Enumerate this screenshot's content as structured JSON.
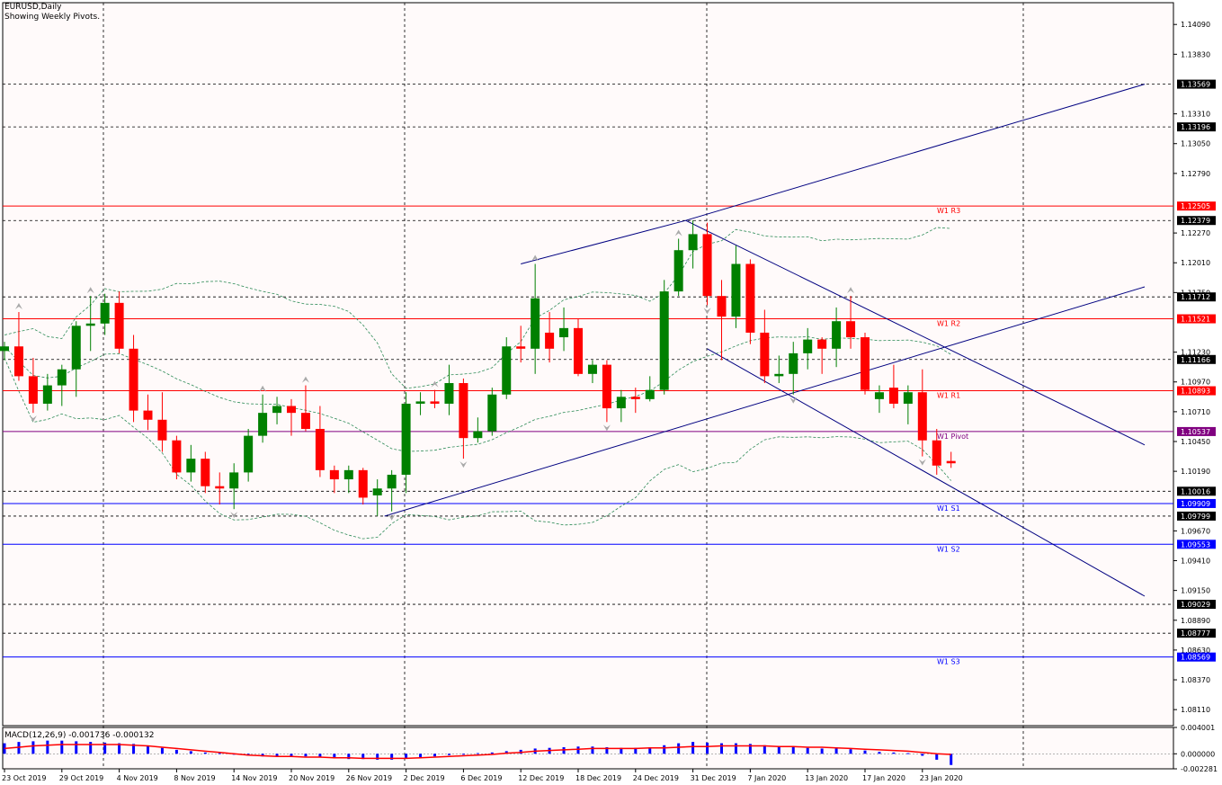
{
  "title": "EURUSD,Daily",
  "subtitle": "Showing Weekly Pivots.",
  "macd_label": "MACD(12,26,9) -0.001736 -0.000132",
  "colors": {
    "background": "#fffafa",
    "bull": "#008000",
    "bear": "#ff0000",
    "pivot": "#800080",
    "resistance": "#ff0000",
    "support": "#0000ff",
    "channel": "#000080",
    "envelope": "#2e8b57",
    "macd_hist": "#0000ff",
    "macd_signal": "#ff0000"
  },
  "chart_data": {
    "type": "candlestick",
    "symbol": "EURUSD",
    "timeframe": "Daily",
    "ylim": [
      1.0797,
      1.1428
    ],
    "y_ticks": [
      "1.14090",
      "1.13830",
      "1.13310",
      "1.13050",
      "1.12790",
      "1.12270",
      "1.12010",
      "1.11750",
      "1.11230",
      "1.10970",
      "1.10710",
      "1.10450",
      "1.10190",
      "1.09670",
      "1.09410",
      "1.09150",
      "1.08890",
      "1.08630",
      "1.08370",
      "1.08110"
    ],
    "x_labels": [
      {
        "i": 0,
        "label": "23 Oct 2019"
      },
      {
        "i": 4,
        "label": "29 Oct 2019"
      },
      {
        "i": 8,
        "label": "4 Nov 2019"
      },
      {
        "i": 12,
        "label": "8 Nov 2019"
      },
      {
        "i": 16,
        "label": "14 Nov 2019"
      },
      {
        "i": 20,
        "label": "20 Nov 2019"
      },
      {
        "i": 24,
        "label": "26 Nov 2019"
      },
      {
        "i": 28,
        "label": "2 Dec 2019"
      },
      {
        "i": 32,
        "label": "6 Dec 2019"
      },
      {
        "i": 36,
        "label": "12 Dec 2019"
      },
      {
        "i": 40,
        "label": "18 Dec 2019"
      },
      {
        "i": 44,
        "label": "24 Dec 2019"
      },
      {
        "i": 48,
        "label": "31 Dec 2019"
      },
      {
        "i": 52,
        "label": "7 Jan 2020"
      },
      {
        "i": 56,
        "label": "13 Jan 2020"
      },
      {
        "i": 60,
        "label": "17 Jan 2020"
      },
      {
        "i": 64,
        "label": "23 Jan 2020"
      }
    ],
    "candles": [
      {
        "o": 1.1124,
        "h": 1.1132,
        "l": 1.1116,
        "c": 1.1128
      },
      {
        "o": 1.1128,
        "h": 1.1158,
        "l": 1.1098,
        "c": 1.1102
      },
      {
        "o": 1.1102,
        "h": 1.1118,
        "l": 1.107,
        "c": 1.1078
      },
      {
        "o": 1.1078,
        "h": 1.1104,
        "l": 1.1072,
        "c": 1.1094
      },
      {
        "o": 1.1094,
        "h": 1.1112,
        "l": 1.1076,
        "c": 1.1108
      },
      {
        "o": 1.1108,
        "h": 1.115,
        "l": 1.1084,
        "c": 1.1146
      },
      {
        "o": 1.1146,
        "h": 1.1172,
        "l": 1.1124,
        "c": 1.1148
      },
      {
        "o": 1.1148,
        "h": 1.1174,
        "l": 1.1138,
        "c": 1.1166
      },
      {
        "o": 1.1166,
        "h": 1.1176,
        "l": 1.1122,
        "c": 1.1126
      },
      {
        "o": 1.1126,
        "h": 1.1138,
        "l": 1.1062,
        "c": 1.1072
      },
      {
        "o": 1.1072,
        "h": 1.1086,
        "l": 1.1055,
        "c": 1.1064
      },
      {
        "o": 1.1064,
        "h": 1.1088,
        "l": 1.1036,
        "c": 1.1046
      },
      {
        "o": 1.1046,
        "h": 1.105,
        "l": 1.1012,
        "c": 1.1018
      },
      {
        "o": 1.1018,
        "h": 1.1042,
        "l": 1.101,
        "c": 1.103
      },
      {
        "o": 1.103,
        "h": 1.1036,
        "l": 1.1,
        "c": 1.1006
      },
      {
        "o": 1.1006,
        "h": 1.1018,
        "l": 1.099,
        "c": 1.1004
      },
      {
        "o": 1.1004,
        "h": 1.1026,
        "l": 1.0986,
        "c": 1.1018
      },
      {
        "o": 1.1018,
        "h": 1.1056,
        "l": 1.101,
        "c": 1.105
      },
      {
        "o": 1.105,
        "h": 1.1086,
        "l": 1.1044,
        "c": 1.107
      },
      {
        "o": 1.107,
        "h": 1.1084,
        "l": 1.106,
        "c": 1.1076
      },
      {
        "o": 1.1076,
        "h": 1.1082,
        "l": 1.105,
        "c": 1.107
      },
      {
        "o": 1.107,
        "h": 1.1094,
        "l": 1.1054,
        "c": 1.1056
      },
      {
        "o": 1.1056,
        "h": 1.1076,
        "l": 1.1014,
        "c": 1.102
      },
      {
        "o": 1.102,
        "h": 1.1024,
        "l": 1.1,
        "c": 1.1012
      },
      {
        "o": 1.1012,
        "h": 1.1024,
        "l": 1.1,
        "c": 1.102
      },
      {
        "o": 1.102,
        "h": 1.1022,
        "l": 1.099,
        "c": 1.0996
      },
      {
        "o": 1.0998,
        "h": 1.1012,
        "l": 1.098,
        "c": 1.1004
      },
      {
        "o": 1.1004,
        "h": 1.102,
        "l": 1.0984,
        "c": 1.1016
      },
      {
        "o": 1.1016,
        "h": 1.1088,
        "l": 1.1,
        "c": 1.1078
      },
      {
        "o": 1.1078,
        "h": 1.1088,
        "l": 1.1068,
        "c": 1.108
      },
      {
        "o": 1.108,
        "h": 1.109,
        "l": 1.1074,
        "c": 1.1078
      },
      {
        "o": 1.1078,
        "h": 1.1112,
        "l": 1.1068,
        "c": 1.1096
      },
      {
        "o": 1.1096,
        "h": 1.11,
        "l": 1.103,
        "c": 1.1048
      },
      {
        "o": 1.1048,
        "h": 1.1066,
        "l": 1.1044,
        "c": 1.1054
      },
      {
        "o": 1.1054,
        "h": 1.1092,
        "l": 1.105,
        "c": 1.1086
      },
      {
        "o": 1.1086,
        "h": 1.1136,
        "l": 1.1082,
        "c": 1.1128
      },
      {
        "o": 1.1128,
        "h": 1.1146,
        "l": 1.1114,
        "c": 1.1126
      },
      {
        "o": 1.1126,
        "h": 1.12,
        "l": 1.1104,
        "c": 1.117
      },
      {
        "o": 1.114,
        "h": 1.1158,
        "l": 1.1114,
        "c": 1.1126
      },
      {
        "o": 1.1136,
        "h": 1.1162,
        "l": 1.1124,
        "c": 1.1144
      },
      {
        "o": 1.1144,
        "h": 1.1152,
        "l": 1.1102,
        "c": 1.1104
      },
      {
        "o": 1.1104,
        "h": 1.1116,
        "l": 1.1096,
        "c": 1.1112
      },
      {
        "o": 1.1112,
        "h": 1.1116,
        "l": 1.1062,
        "c": 1.1074
      },
      {
        "o": 1.1074,
        "h": 1.109,
        "l": 1.1062,
        "c": 1.1084
      },
      {
        "o": 1.1084,
        "h": 1.1092,
        "l": 1.107,
        "c": 1.1082
      },
      {
        "o": 1.1082,
        "h": 1.1102,
        "l": 1.108,
        "c": 1.109
      },
      {
        "o": 1.109,
        "h": 1.1186,
        "l": 1.1086,
        "c": 1.1176
      },
      {
        "o": 1.1176,
        "h": 1.1222,
        "l": 1.1172,
        "c": 1.1212
      },
      {
        "o": 1.1212,
        "h": 1.1238,
        "l": 1.1196,
        "c": 1.1226
      },
      {
        "o": 1.1226,
        "h": 1.1236,
        "l": 1.1164,
        "c": 1.1172
      },
      {
        "o": 1.1172,
        "h": 1.1186,
        "l": 1.1116,
        "c": 1.1154
      },
      {
        "o": 1.1154,
        "h": 1.1216,
        "l": 1.1144,
        "c": 1.12
      },
      {
        "o": 1.12,
        "h": 1.1204,
        "l": 1.113,
        "c": 1.114
      },
      {
        "o": 1.114,
        "h": 1.116,
        "l": 1.1096,
        "c": 1.1102
      },
      {
        "o": 1.1102,
        "h": 1.112,
        "l": 1.1096,
        "c": 1.1104
      },
      {
        "o": 1.1104,
        "h": 1.1132,
        "l": 1.1086,
        "c": 1.1122
      },
      {
        "o": 1.1122,
        "h": 1.1144,
        "l": 1.1108,
        "c": 1.1134
      },
      {
        "o": 1.1134,
        "h": 1.1136,
        "l": 1.1104,
        "c": 1.1126
      },
      {
        "o": 1.1126,
        "h": 1.1162,
        "l": 1.111,
        "c": 1.115
      },
      {
        "o": 1.115,
        "h": 1.1172,
        "l": 1.1126,
        "c": 1.1136
      },
      {
        "o": 1.1136,
        "h": 1.114,
        "l": 1.1086,
        "c": 1.109
      },
      {
        "o": 1.1082,
        "h": 1.1094,
        "l": 1.107,
        "c": 1.1088
      },
      {
        "o": 1.1092,
        "h": 1.1112,
        "l": 1.1074,
        "c": 1.1078
      },
      {
        "o": 1.1078,
        "h": 1.1094,
        "l": 1.106,
        "c": 1.1088
      },
      {
        "o": 1.1088,
        "h": 1.1108,
        "l": 1.1032,
        "c": 1.1046
      },
      {
        "o": 1.1046,
        "h": 1.1056,
        "l": 1.1016,
        "c": 1.1024
      },
      {
        "o": 1.1028,
        "h": 1.1036,
        "l": 1.1022,
        "c": 1.1026
      }
    ],
    "pivot_levels": [
      {
        "name": "W1 R3",
        "value": 1.12505,
        "label": "1.12505"
      },
      {
        "name": "W1 R2",
        "value": 1.11521,
        "label": "1.11521"
      },
      {
        "name": "W1 R1",
        "value": 1.10893,
        "label": "1.10893"
      },
      {
        "name": "W1 Pivot",
        "value": 1.10537,
        "label": "1.10537"
      },
      {
        "name": "W1 S1",
        "value": 1.09909,
        "label": "1.09909"
      },
      {
        "name": "W1 S2",
        "value": 1.09553,
        "label": "1.09553"
      },
      {
        "name": "W1 S3",
        "value": 1.08569,
        "label": "1.08569"
      }
    ],
    "horizontal_levels": [
      {
        "value": 1.13569,
        "label": "1.13569"
      },
      {
        "value": 1.13196,
        "label": "1.13196"
      },
      {
        "value": 1.12379,
        "label": "1.12379"
      },
      {
        "value": 1.11712,
        "label": "1.11712"
      },
      {
        "value": 1.11166,
        "label": "1.11166"
      },
      {
        "value": 1.10016,
        "label": "1.10016"
      },
      {
        "value": 1.09799,
        "label": "1.09799"
      },
      {
        "value": 1.09029,
        "label": "1.09029"
      },
      {
        "value": 1.08777,
        "label": "1.08777"
      }
    ],
    "trendlines": [
      {
        "p1": {
          "i": 26.5,
          "y": 1.09799
        },
        "p2": {
          "i": 79.5,
          "y": 1.118
        }
      },
      {
        "p1": {
          "i": 36,
          "y": 1.12
        },
        "p2": {
          "i": 47.5,
          "y": 1.12379
        },
        "p3": {
          "i": 79.5,
          "y": 1.13569
        }
      },
      {
        "p1": {
          "i": 47.5,
          "y": 1.12379
        },
        "p2": {
          "i": 79.5,
          "y": 1.1042
        }
      },
      {
        "p1": {
          "i": 49,
          "y": 1.1126
        },
        "p2": {
          "i": 79.5,
          "y": 1.091
        }
      }
    ],
    "macd": {
      "ylim": [
        -0.002281,
        0.004001
      ],
      "y_ticks": [
        "0.004001",
        "0.000000",
        "-0.002281"
      ],
      "histogram": [
        0.0016,
        0.0018,
        0.0019,
        0.002,
        0.002,
        0.0019,
        0.0018,
        0.0017,
        0.0016,
        0.0015,
        0.0012,
        0.0009,
        0.0006,
        0.0004,
        0.0002,
        0.0001,
        -0.0001,
        -0.0003,
        -0.0004,
        -0.0003,
        -0.0003,
        -0.0004,
        -0.0005,
        -0.0006,
        -0.0008,
        -0.0008,
        -0.0009,
        -0.0009,
        -0.0007,
        -0.0005,
        -0.0004,
        -0.0002,
        -0.0001,
        0.0001,
        0.0002,
        0.0004,
        0.0006,
        0.0008,
        0.0009,
        0.001,
        0.0011,
        0.0011,
        0.001,
        0.0009,
        0.0009,
        0.001,
        0.0013,
        0.0016,
        0.0018,
        0.0017,
        0.0016,
        0.0016,
        0.0015,
        0.0013,
        0.0011,
        0.001,
        0.0009,
        0.0008,
        0.0008,
        0.0007,
        0.0005,
        0.0003,
        0.0002,
        0.0001,
        -0.0003,
        -0.0009,
        -0.0017
      ],
      "signal": [
        0.0008,
        0.001,
        0.0012,
        0.0013,
        0.0014,
        0.0014,
        0.0014,
        0.0014,
        0.0014,
        0.0013,
        0.0012,
        0.001,
        0.0008,
        0.0006,
        0.0004,
        0.0002,
        0.0,
        -0.0002,
        -0.0003,
        -0.0004,
        -0.0004,
        -0.0005,
        -0.0005,
        -0.0006,
        -0.0006,
        -0.0007,
        -0.0007,
        -0.0007,
        -0.0007,
        -0.0006,
        -0.0005,
        -0.0004,
        -0.0003,
        -0.0002,
        -0.0001,
        0.0001,
        0.0002,
        0.0004,
        0.0005,
        0.0006,
        0.0007,
        0.0008,
        0.0008,
        0.0008,
        0.0008,
        0.0009,
        0.0009,
        0.001,
        0.0011,
        0.0011,
        0.0012,
        0.0012,
        0.0012,
        0.0012,
        0.0011,
        0.0011,
        0.001,
        0.001,
        0.0009,
        0.0008,
        0.0007,
        0.0006,
        0.0005,
        0.0004,
        0.0002,
        0.0,
        -0.0001
      ]
    }
  }
}
